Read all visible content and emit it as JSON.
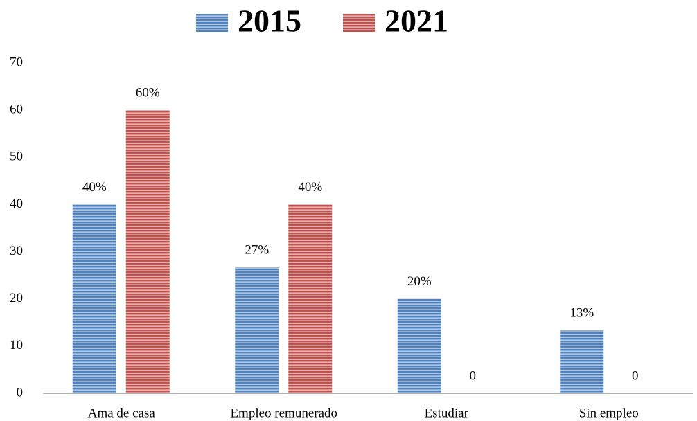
{
  "chart_data": {
    "type": "bar",
    "categories": [
      "Ama de casa",
      "Empleo remunerado",
      "Estudiar",
      "Sin empleo"
    ],
    "series": [
      {
        "name": "2015",
        "color": "#4f81bd",
        "values": [
          40,
          26.7,
          20,
          13.3
        ],
        "value_labels": [
          "40%",
          "27%",
          "20%",
          "13%"
        ]
      },
      {
        "name": "2021",
        "color": "#c0504d",
        "values": [
          60,
          40,
          0,
          0
        ],
        "value_labels": [
          "60%",
          "40%",
          "0",
          "0"
        ]
      }
    ],
    "ylim": [
      0,
      70
    ],
    "yticks": [
      0,
      10,
      20,
      30,
      40,
      50,
      60,
      70
    ],
    "grid": false,
    "legend": "top"
  }
}
